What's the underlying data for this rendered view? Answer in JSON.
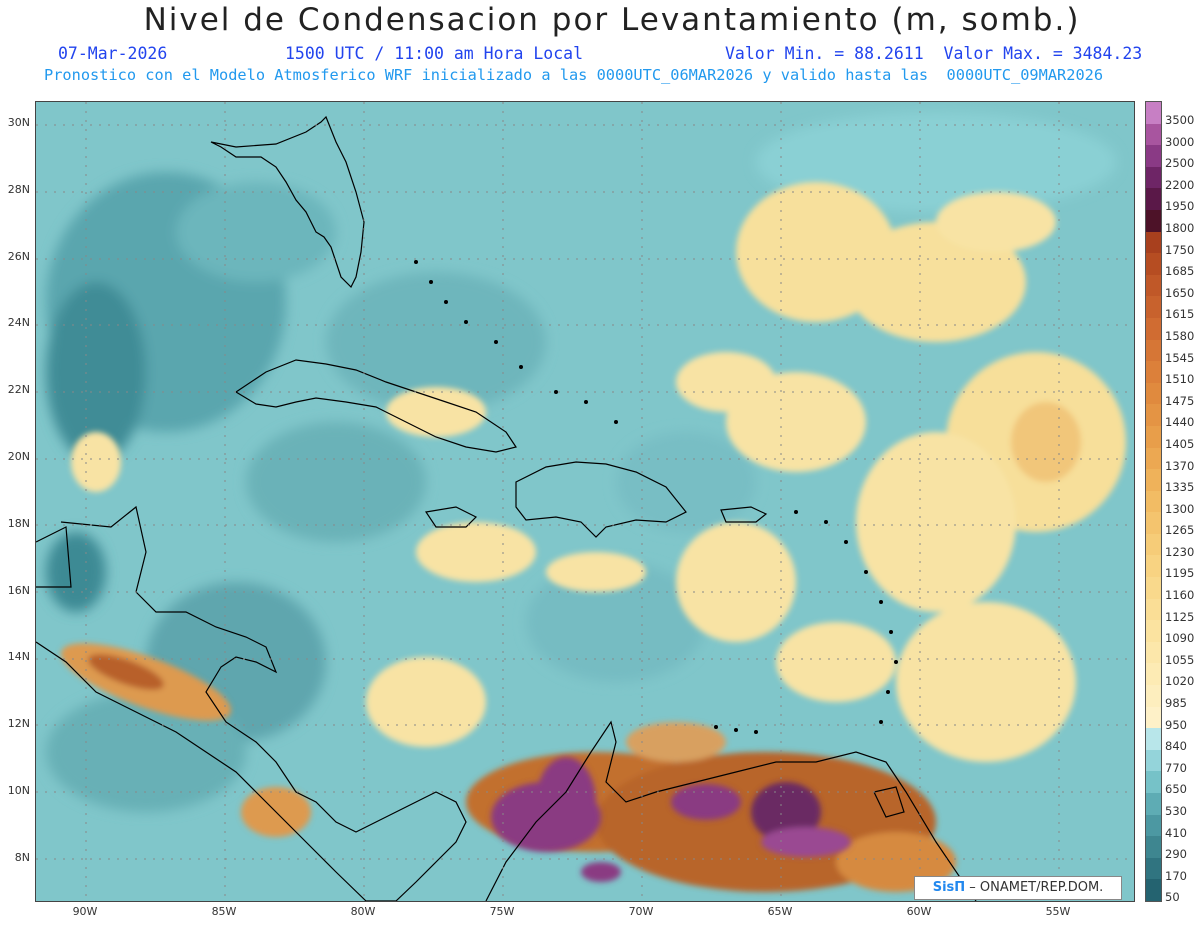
{
  "title": "Nivel de Condensacion por Levantamiento (m, somb.)",
  "date": "07-Mar-2026",
  "time": "1500 UTC / 11:00 am Hora Local",
  "min_max": "Valor Min. = 88.2611  Valor Max. = 3484.23",
  "forecast_info": "Pronostico con el Modelo Atmosferico WRF inicializado a las 0000UTC_06MAR2026 y valido hasta las  0000UTC_09MAR2026",
  "lat_labels": [
    "30N",
    "28N",
    "26N",
    "24N",
    "22N",
    "20N",
    "18N",
    "16N",
    "14N",
    "12N",
    "10N",
    "8N"
  ],
  "lon_labels": [
    "90W",
    "85W",
    "80W",
    "75W",
    "70W",
    "65W",
    "60W",
    "55W"
  ],
  "colorbar": {
    "levels": [
      "3500",
      "3000",
      "2500",
      "2200",
      "1950",
      "1800",
      "1750",
      "1685",
      "1650",
      "1615",
      "1580",
      "1545",
      "1510",
      "1475",
      "1440",
      "1405",
      "1370",
      "1335",
      "1300",
      "1265",
      "1230",
      "1195",
      "1160",
      "1125",
      "1090",
      "1055",
      "1020",
      "985",
      "950",
      "840",
      "770",
      "650",
      "530",
      "410",
      "290",
      "170",
      "50"
    ],
    "colors": [
      "#c77fc4",
      "#a8559f",
      "#8a3a85",
      "#6e2566",
      "#5a1848",
      "#4d1228",
      "#a8401e",
      "#b64d22",
      "#c05828",
      "#c8622d",
      "#d06c32",
      "#d67636",
      "#dc803a",
      "#e08a3e",
      "#e49444",
      "#e89e4a",
      "#eca852",
      "#efb25a",
      "#f2bc64",
      "#f4c46e",
      "#f6cc78",
      "#f8d382",
      "#f9d98c",
      "#fade96",
      "#fbe3a0",
      "#fce7aa",
      "#fdebb4",
      "#fdeebe",
      "#fef1c8",
      "#b8e6ea",
      "#94d4da",
      "#76c2c8",
      "#5eacb4",
      "#4c98a2",
      "#3e8690",
      "#307480",
      "#246370"
    ]
  },
  "credit": {
    "brand": "SisΠ",
    "text": " – ONAMET/REP.DOM."
  },
  "colors": {
    "ocean_base": "#7ec4c8",
    "land_outline": "#000000",
    "dry_band": "#f6dd96",
    "high_lcl": "#b25a28",
    "very_high_lcl": "#7a3a78"
  }
}
